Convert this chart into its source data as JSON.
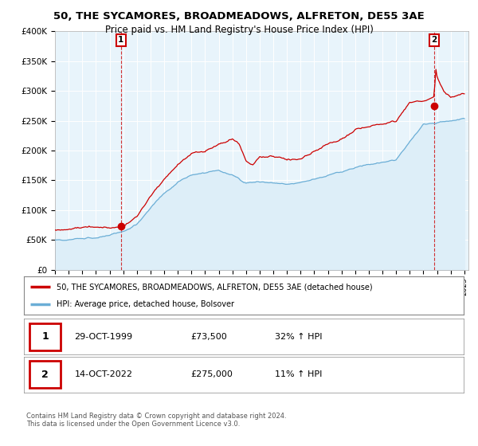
{
  "title": "50, THE SYCAMORES, BROADMEADOWS, ALFRETON, DE55 3AE",
  "subtitle": "Price paid vs. HM Land Registry's House Price Index (HPI)",
  "ylim": [
    0,
    400000
  ],
  "yticks": [
    0,
    50000,
    100000,
    150000,
    200000,
    250000,
    300000,
    350000,
    400000
  ],
  "ytick_labels": [
    "£0",
    "£50K",
    "£100K",
    "£150K",
    "£200K",
    "£250K",
    "£300K",
    "£350K",
    "£400K"
  ],
  "hpi_color": "#6baed6",
  "hpi_fill_color": "#ddeef8",
  "price_color": "#cc0000",
  "sale1_date": 1999.83,
  "sale1_price": 73500,
  "sale2_date": 2022.79,
  "sale2_price": 275000,
  "legend_label1": "50, THE SYCAMORES, BROADMEADOWS, ALFRETON, DE55 3AE (detached house)",
  "legend_label2": "HPI: Average price, detached house, Bolsover",
  "table_row1": [
    "1",
    "29-OCT-1999",
    "£73,500",
    "32% ↑ HPI"
  ],
  "table_row2": [
    "2",
    "14-OCT-2022",
    "£275,000",
    "11% ↑ HPI"
  ],
  "footer": "Contains HM Land Registry data © Crown copyright and database right 2024.\nThis data is licensed under the Open Government Licence v3.0.",
  "plot_bg_color": "#e8f4fb",
  "fig_bg_color": "#ffffff",
  "grid_color": "#ffffff"
}
